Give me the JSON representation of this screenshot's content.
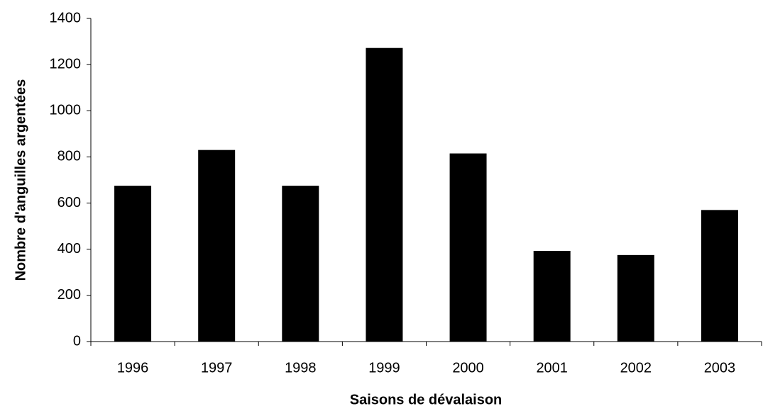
{
  "chart_data": {
    "type": "bar",
    "categories": [
      "1996",
      "1997",
      "1998",
      "1999",
      "2000",
      "2001",
      "2002",
      "2003"
    ],
    "values": [
      675,
      830,
      675,
      1272,
      815,
      393,
      375,
      570
    ],
    "color": "#000000",
    "xlabel": "Saisons de dévalaison",
    "ylabel": "Nombre d'anguilles argentées",
    "ylim": [
      0,
      1400
    ],
    "yticks": [
      0,
      200,
      400,
      600,
      800,
      1000,
      1200,
      1400
    ],
    "grid": false
  }
}
